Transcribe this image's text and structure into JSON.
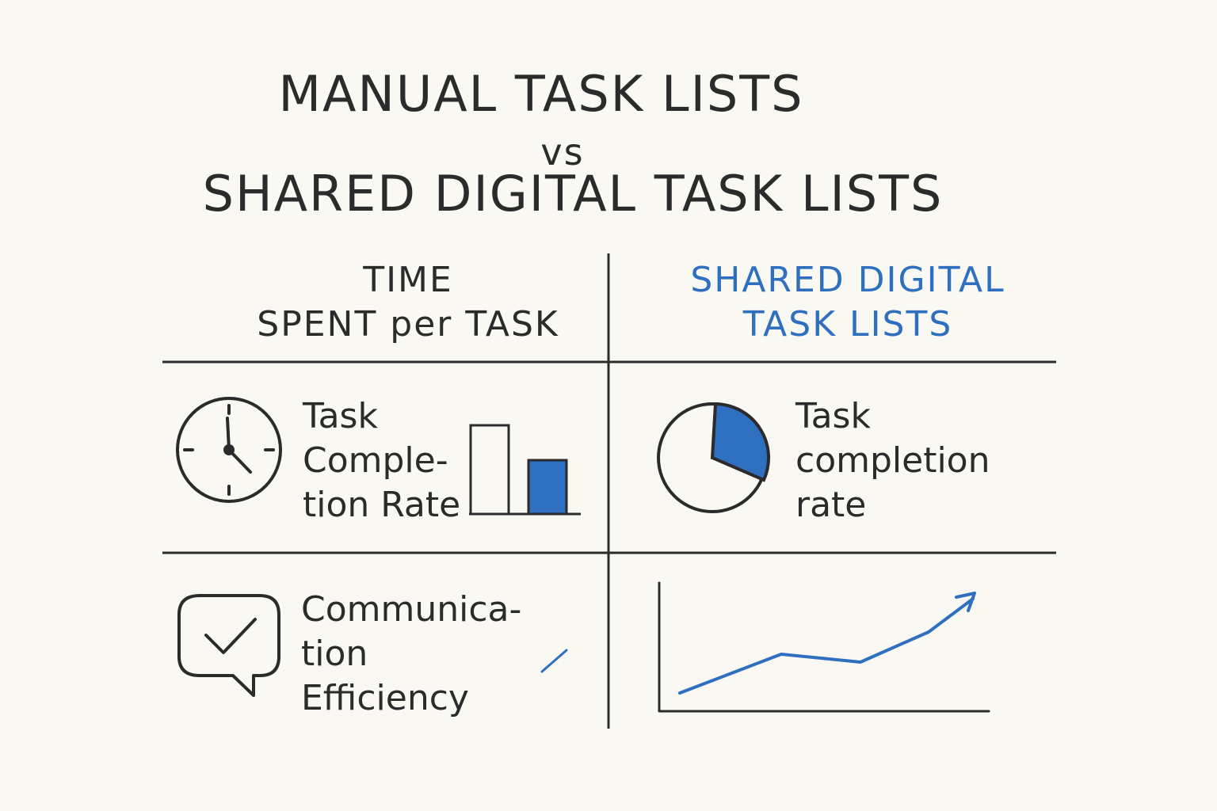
{
  "title": {
    "line1": "MANUAL TASK LISTS",
    "line2": "vs",
    "line3": "SHARED DIGITAL TASK LISTS"
  },
  "headers": {
    "left": [
      "TIME",
      "SPENT per TASK"
    ],
    "right": [
      "SHARED DIGITAL",
      "TASK LISTS"
    ]
  },
  "cells": {
    "manual_completion": {
      "label": [
        "Task",
        "Comple-",
        "tion Rate"
      ],
      "icon": "clock-icon"
    },
    "digital_completion": {
      "label": [
        "Task",
        "completion",
        "rate"
      ],
      "icon": "pie-chart-icon"
    },
    "manual_communication": {
      "label": [
        "Communica-",
        "tion",
        "Efficiency"
      ],
      "icon": "chat-check-icon"
    },
    "digital_communication": {
      "icon": "rising-line-chart-icon"
    }
  },
  "colors": {
    "accent": "#2f6fbf",
    "ink": "#2b2b2b",
    "background": "#faf8f3"
  }
}
